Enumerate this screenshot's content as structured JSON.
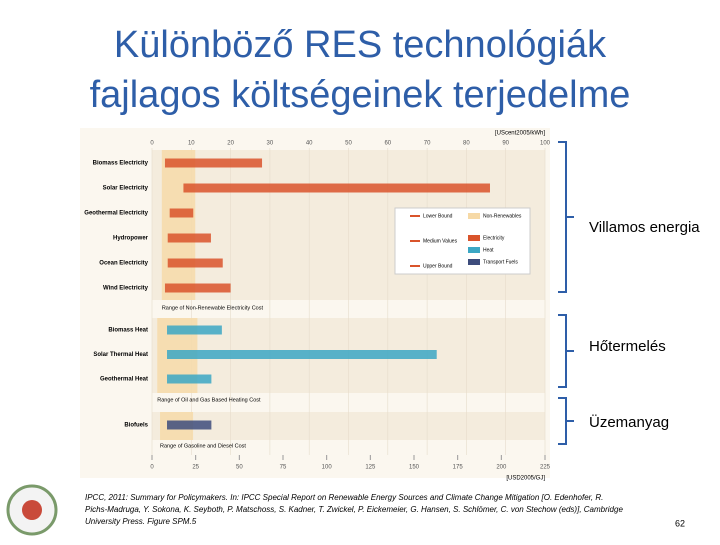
{
  "title": [
    "Különböző RES technológiák",
    "fajlagos költségeinek terjedelme"
  ],
  "side_labels": [
    "Villamos energia",
    "Hőtermelés",
    "Üzemanyag"
  ],
  "citation": [
    "IPCC, 2011: Summary for Policymakers. In: IPCC Special Report on Renewable Energy Sources and Climate Change Mitigation [O. Edenhofer, R.",
    "Pichs-Madruga, Y. Sokona, K. Seyboth, P. Matschoss, S. Kadner, T. Zwickel, P. Eickemeier, G. Hansen, S. Schlömer, C. von Stechow (eds)], Cambridge",
    "University Press. Figure SPM.5"
  ],
  "page_number": "62",
  "chart_data": {
    "type": "range_bar",
    "x_label": "[UScent2005/kWh]",
    "x2_label": "[USD2005/GJ]",
    "xlim": [
      0,
      100
    ],
    "xticks": [
      0,
      10,
      20,
      30,
      40,
      50,
      60,
      70,
      80,
      90,
      100
    ],
    "x2lim": [
      0,
      225
    ],
    "x2ticks": [
      0,
      25,
      50,
      75,
      100,
      125,
      150,
      175,
      200,
      225
    ],
    "series": [
      {
        "name": "Electricity",
        "color": "#d9542b",
        "axis": "x",
        "categories": [
          "Biomass Electricity",
          "Solar Electricity",
          "Geothermal Electricity",
          "Hydropower",
          "Ocean Electricity",
          "Wind Electricity"
        ],
        "low": [
          3.3,
          8,
          4.5,
          4,
          4,
          3.3
        ],
        "high": [
          28,
          86,
          10.5,
          15,
          18,
          20
        ]
      },
      {
        "name": "Heat",
        "color": "#3ba7c4",
        "axis": "x2",
        "categories": [
          "Biomass Heat",
          "Solar Thermal Heat",
          "Geothermal Heat"
        ],
        "low": [
          8.6,
          8.6,
          8.6
        ],
        "high": [
          40,
          163,
          34
        ]
      },
      {
        "name": "Transport Fuels",
        "color": "#3d4c7c",
        "axis": "x2",
        "categories": [
          "Biofuels"
        ],
        "low": [
          8.6
        ],
        "high": [
          34
        ]
      }
    ],
    "reference_ranges": [
      {
        "label": "Range of Non-Renewable Electricity Cost",
        "axis": "x",
        "low": 2.5,
        "high": 11
      },
      {
        "label": "Range of Oil and Gas Based Heating Cost",
        "axis": "x2",
        "low": 3,
        "high": 26
      },
      {
        "label": "Range of Gasoline and Diesel Cost",
        "axis": "x2",
        "low": 4.6,
        "high": 23.5
      }
    ],
    "reference_name": "Non-Renewables",
    "reference_color": "#f6d9a6",
    "legend_marks": [
      "Lower Bound",
      "Medium Values",
      "Upper Bound"
    ]
  }
}
